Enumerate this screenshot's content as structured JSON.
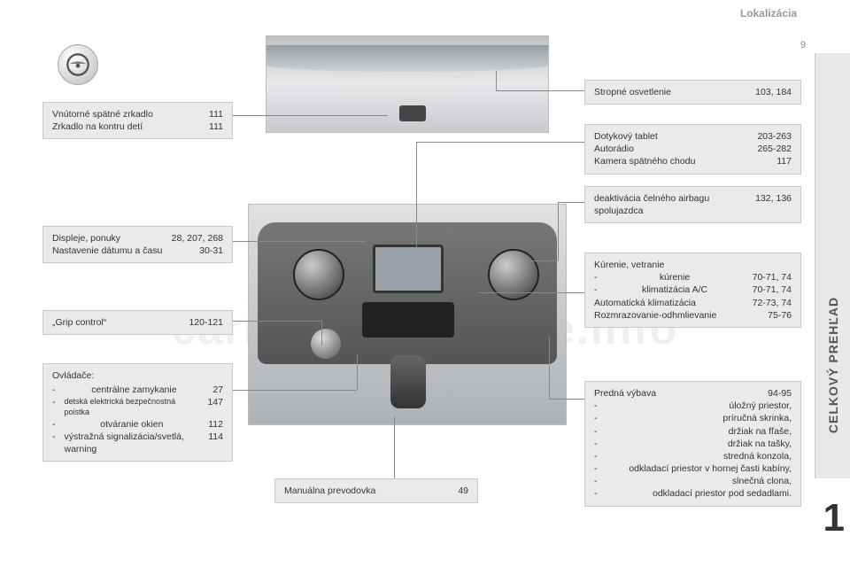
{
  "page": {
    "header": "Lokalizácia",
    "side_tab": "CELKOVÝ PREHĽAD",
    "chapter_number": "1",
    "page_number": "9",
    "watermark": "carmanualsonline.info"
  },
  "colors": {
    "callout_bg": "#eaeaea",
    "callout_border": "#c8c8c8",
    "text": "#333333",
    "line": "#888888",
    "sidebar_bg": "#e8e8e8"
  },
  "callouts": {
    "mirror": {
      "rows": [
        {
          "label": "Vnútorné spätné zrkadlo",
          "page": "111"
        },
        {
          "label": "Zrkadlo na kontru detí",
          "page": "111"
        }
      ]
    },
    "displays": {
      "rows": [
        {
          "label": "Displeje, ponuky",
          "page": "28, 207, 268"
        },
        {
          "label": "Nastavenie dátumu a času",
          "page": "30-31"
        }
      ]
    },
    "grip": {
      "rows": [
        {
          "label": "„Grip control“",
          "page": "120-121"
        }
      ]
    },
    "controls": {
      "title": "Ovládače:",
      "items": [
        {
          "label": "centrálne zamykanie",
          "page": "27"
        },
        {
          "label": "detská elektrická bezpečnostná poistka",
          "page": "147"
        },
        {
          "label": "otváranie okien",
          "page": "112"
        },
        {
          "label": "výstražná signalizácia/svetlá, warning",
          "page": "114"
        }
      ]
    },
    "gearbox": {
      "rows": [
        {
          "label": "Manuálna prevodovka",
          "page": "49"
        }
      ]
    },
    "ceiling": {
      "rows": [
        {
          "label": "Stropné osvetlenie",
          "page": "103, 184"
        }
      ]
    },
    "tablet": {
      "rows": [
        {
          "label": "Dotykový tablet",
          "page": "203-263"
        },
        {
          "label": "Autorádio",
          "page": "265-282"
        },
        {
          "label": "Kamera spätného chodu",
          "page": "117"
        }
      ]
    },
    "airbag": {
      "rows": [
        {
          "label": "deaktivácia čelného airbagu spolujazdca",
          "page": "132, 136"
        }
      ]
    },
    "heating": {
      "title": "Kúrenie, vetranie",
      "items": [
        {
          "label": "kúrenie",
          "page": "70-71, 74"
        },
        {
          "label": "klimatizácia A/C",
          "page": "70-71, 74"
        }
      ],
      "extra": [
        {
          "label": "Automatická klimatizácia",
          "page": "72-73, 74"
        },
        {
          "label": "Rozmrazovanie-odhmlievanie",
          "page": "75-76"
        }
      ]
    },
    "front_equipment": {
      "titleRow": {
        "label": "Predná výbava",
        "page": "94-95"
      },
      "items": [
        "úložný priestor,",
        "príručná skrinka,",
        "držiak na fľaše,",
        "držiak na tašky,",
        "stredná konzola,",
        "odkladací priestor v hornej časti kabíny,",
        "slnečná clona,",
        "odkladací priestor pod sedadlami."
      ]
    }
  }
}
